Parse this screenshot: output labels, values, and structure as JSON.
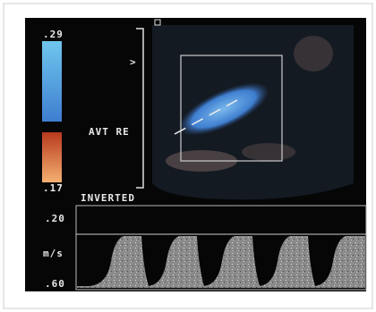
{
  "color_scale": {
    "max": ".29",
    "min": ".17"
  },
  "labels": {
    "marker": ">",
    "site": "AVT RE",
    "mode": "INVERTED"
  },
  "velocity_axis": {
    "top": ".20",
    "unit": "m/s",
    "bottom": ".60"
  }
}
